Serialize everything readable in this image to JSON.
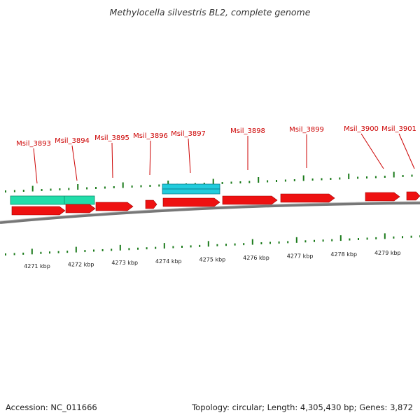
{
  "title": "Methylocella silvestris BL2, complete genome",
  "footer": {
    "accession": "Accession: NC_011666",
    "summary": "Topology: circular; Length: 4,305,430 bp; Genes: 3,872"
  },
  "colors": {
    "forward_gene": "#ee1111",
    "feature_green": "#22ddaa",
    "feature_cyan": "#22ccdd",
    "tick": "#1a7a1a",
    "label": "#cc0000",
    "backbone": "#888888"
  },
  "gene_labels": [
    "Msil_3893",
    "Msil_3894",
    "Msil_3895",
    "Msil_3896",
    "Msil_3897",
    "Msil_3898",
    "Msil_3899",
    "Msil_3900",
    "Msil_3901"
  ],
  "kbp_labels": [
    "4271 kbp",
    "4272 kbp",
    "4273 kbp",
    "4274 kbp",
    "4275 kbp",
    "4276 kbp",
    "4277 kbp",
    "4278 kbp",
    "4279 kbp"
  ]
}
